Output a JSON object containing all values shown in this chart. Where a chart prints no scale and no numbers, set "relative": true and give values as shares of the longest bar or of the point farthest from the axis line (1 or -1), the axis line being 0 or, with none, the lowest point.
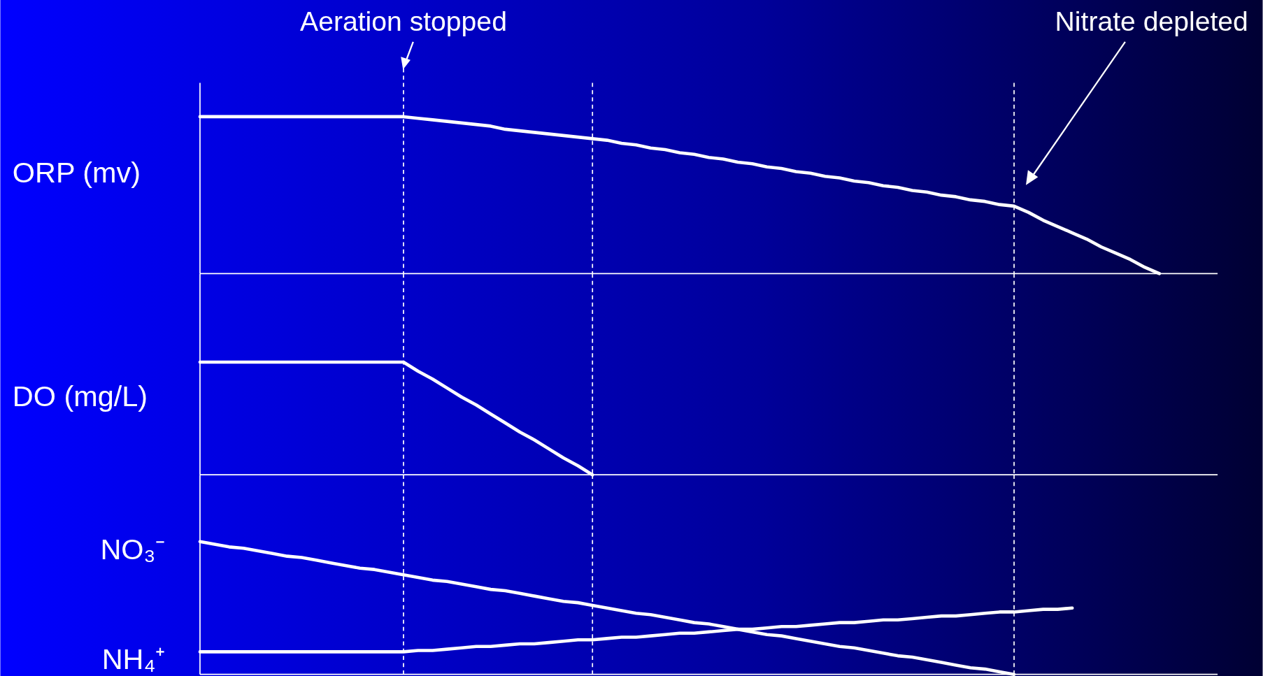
{
  "chart_data": [
    {
      "type": "line",
      "ylabel": "ORP (mv)",
      "relative": true,
      "categories": [
        null,
        null,
        null,
        null,
        null,
        null,
        null,
        null,
        null,
        null,
        null,
        null,
        null,
        null,
        null,
        null,
        null,
        null,
        null,
        null,
        null,
        null,
        null,
        null,
        null,
        null,
        null,
        null,
        null,
        null,
        null,
        null,
        null,
        null,
        null,
        null,
        null,
        null,
        null,
        null,
        null,
        null,
        null,
        null,
        null,
        null,
        null,
        null,
        null,
        null,
        null,
        null,
        null,
        null,
        null,
        null,
        null,
        null,
        null,
        null,
        null,
        null,
        null,
        null,
        null,
        null,
        null,
        null,
        null,
        null,
        null
      ],
      "series": [
        {
          "color": "#ffffff",
          "values": [
            1,
            1,
            1,
            1,
            1,
            1,
            1,
            1,
            1,
            1,
            1,
            1,
            1,
            1,
            1,
            0.99,
            0.98,
            0.97,
            0.96,
            0.95,
            0.94,
            0.92,
            0.91,
            0.9,
            0.89,
            0.88,
            0.87,
            0.86,
            0.85,
            0.83,
            0.82,
            0.8,
            0.79,
            0.77,
            0.76,
            0.74,
            0.73,
            0.71,
            0.7,
            0.68,
            0.67,
            0.65,
            0.64,
            0.62,
            0.61,
            0.59,
            0.58,
            0.56,
            0.55,
            0.53,
            0.52,
            0.5,
            0.49,
            0.47,
            0.46,
            0.44,
            0.43,
            0.39,
            0.34,
            0.3,
            0.26,
            0.22,
            0.17,
            0.13,
            0.09,
            0.04,
            0,
            null,
            null,
            null,
            null
          ]
        }
      ],
      "grid": "x",
      "annotations": [
        "Aeration stopped",
        "Nitrate depleted"
      ]
    },
    {
      "type": "line",
      "ylabel": "DO (mg/L)",
      "relative": true,
      "categories": [
        null,
        null,
        null,
        null,
        null,
        null,
        null,
        null,
        null,
        null,
        null,
        null,
        null,
        null,
        null,
        null,
        null,
        null,
        null,
        null,
        null,
        null,
        null,
        null,
        null,
        null,
        null,
        null,
        null,
        null,
        null,
        null,
        null,
        null,
        null,
        null,
        null,
        null,
        null,
        null,
        null,
        null,
        null,
        null,
        null,
        null,
        null,
        null,
        null,
        null,
        null,
        null,
        null,
        null,
        null,
        null,
        null,
        null,
        null,
        null,
        null,
        null,
        null,
        null,
        null,
        null,
        null,
        null,
        null,
        null,
        null
      ],
      "series": [
        {
          "color": "#ffffff",
          "values": [
            1,
            1,
            1,
            1,
            1,
            1,
            1,
            1,
            1,
            1,
            1,
            1,
            1,
            1,
            1,
            0.92,
            0.85,
            0.77,
            0.69,
            0.62,
            0.54,
            0.46,
            0.38,
            0.31,
            0.23,
            0.15,
            0.08,
            0,
            null,
            null,
            null,
            null,
            null,
            null,
            null,
            null,
            null,
            null,
            null,
            null,
            null,
            null,
            null,
            null,
            null,
            null,
            null,
            null,
            null,
            null,
            null,
            null,
            null,
            null,
            null,
            null,
            null,
            null,
            null,
            null,
            null,
            null,
            null,
            null,
            null,
            null,
            null,
            null,
            null,
            null,
            null
          ]
        }
      ],
      "grid": "x"
    },
    {
      "type": "line",
      "relative": true,
      "categories": [
        null,
        null,
        null,
        null,
        null,
        null,
        null,
        null,
        null,
        null,
        null,
        null,
        null,
        null,
        null,
        null,
        null,
        null,
        null,
        null,
        null,
        null,
        null,
        null,
        null,
        null,
        null,
        null,
        null,
        null,
        null,
        null,
        null,
        null,
        null,
        null,
        null,
        null,
        null,
        null,
        null,
        null,
        null,
        null,
        null,
        null,
        null,
        null,
        null,
        null,
        null,
        null,
        null,
        null,
        null,
        null,
        null,
        null,
        null,
        null,
        null,
        null,
        null,
        null,
        null,
        null,
        null,
        null,
        null,
        null,
        null
      ],
      "series": [
        {
          "name": "NO₃⁻",
          "color": "#ffffff",
          "values": [
            1,
            0.98,
            0.96,
            0.95,
            0.93,
            0.91,
            0.89,
            0.88,
            0.86,
            0.84,
            0.82,
            0.8,
            0.79,
            0.77,
            0.75,
            0.73,
            0.71,
            0.7,
            0.68,
            0.66,
            0.64,
            0.63,
            0.61,
            0.59,
            0.57,
            0.55,
            0.54,
            0.52,
            0.5,
            0.48,
            0.46,
            0.45,
            0.43,
            0.41,
            0.39,
            0.38,
            0.36,
            0.34,
            0.32,
            0.3,
            0.29,
            0.27,
            0.25,
            0.23,
            0.21,
            0.2,
            0.18,
            0.16,
            0.14,
            0.13,
            0.11,
            0.09,
            0.07,
            0.05,
            0.04,
            0.02,
            0,
            null,
            null,
            null,
            null,
            null,
            null,
            null,
            null,
            null,
            null,
            null,
            null,
            null,
            null
          ]
        },
        {
          "name": "NH₄⁺",
          "color": "#ffffff",
          "values": [
            0.17,
            0.17,
            0.17,
            0.17,
            0.17,
            0.17,
            0.17,
            0.17,
            0.17,
            0.17,
            0.17,
            0.17,
            0.17,
            0.17,
            0.17,
            0.18,
            0.18,
            0.19,
            0.2,
            0.21,
            0.21,
            0.22,
            0.23,
            0.23,
            0.24,
            0.25,
            0.26,
            0.26,
            0.27,
            0.28,
            0.28,
            0.29,
            0.3,
            0.31,
            0.31,
            0.32,
            0.33,
            0.34,
            0.34,
            0.35,
            0.36,
            0.36,
            0.37,
            0.38,
            0.39,
            0.39,
            0.4,
            0.41,
            0.41,
            0.42,
            0.43,
            0.44,
            0.44,
            0.45,
            0.46,
            0.47,
            0.47,
            0.48,
            0.49,
            0.49,
            0.5,
            null,
            null,
            null,
            null,
            null,
            null,
            null,
            null,
            null,
            null
          ]
        }
      ],
      "grid": "x"
    }
  ]
}
